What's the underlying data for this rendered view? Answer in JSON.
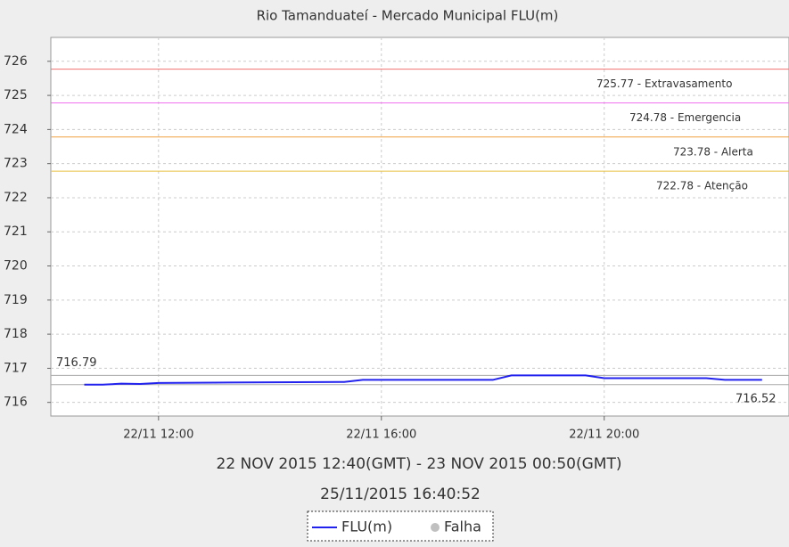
{
  "chart_data": {
    "type": "line",
    "title": "Rio Tamanduateí - Mercado Municipal FLU(m)",
    "subtitle": "22 NOV 2015 12:40(GMT) - 23 NOV 2015 00:50(GMT)",
    "timestamp": "25/11/2015 16:40:52",
    "x": [
      "22/11 10:40",
      "22/11 11:00",
      "22/11 11:20",
      "22/11 11:40",
      "22/11 12:00",
      "22/11 13:00",
      "22/11 15:20",
      "22/11 15:40",
      "22/11 18:00",
      "22/11 18:20",
      "22/11 19:40",
      "22/11 20:00",
      "22/11 21:50",
      "22/11 22:10",
      "22/11 22:50"
    ],
    "series": [
      {
        "name": "FLU(m)",
        "color": "#2222ee",
        "values": [
          716.52,
          716.52,
          716.55,
          716.54,
          716.57,
          716.58,
          716.6,
          716.66,
          716.66,
          716.79,
          716.79,
          716.71,
          716.71,
          716.66,
          716.66
        ]
      }
    ],
    "failure_legend": {
      "name": "Falha",
      "color": "#c0c0c0"
    },
    "max_line": 716.79,
    "min_line": 716.52,
    "thresholds": [
      {
        "value": 725.77,
        "label": "725.77 - Extravasamento",
        "color": "#f07070"
      },
      {
        "value": 724.78,
        "label": "724.78 - Emergencia",
        "color": "#f070f0"
      },
      {
        "value": 723.78,
        "label": "723.78 - Alerta",
        "color": "#f0a040"
      },
      {
        "value": 722.78,
        "label": "722.78 - Atenção",
        "color": "#e8c040"
      }
    ],
    "xlim": [
      "22/11 10:04",
      "22/11 23:19"
    ],
    "xticks": [
      "22/11 12:00",
      "22/11 16:00",
      "22/11 20:00"
    ],
    "ylim": [
      715.6,
      726.7
    ],
    "yticks": [
      716,
      717,
      718,
      719,
      720,
      721,
      722,
      723,
      724,
      725,
      726
    ],
    "grid": true
  }
}
